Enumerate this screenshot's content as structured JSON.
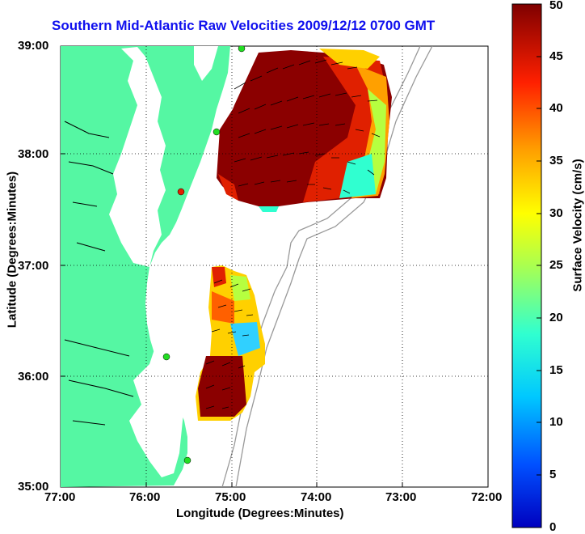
{
  "title": "Southern Mid-Atlantic Raw Velocities 2009/12/12 0700 GMT",
  "x_axis": {
    "label": "Longitude (Degrees:Minutes)",
    "ticks": [
      "77:00",
      "76:00",
      "75:00",
      "74:00",
      "73:00",
      "72:00"
    ]
  },
  "y_axis": {
    "label": "Latitude (Degrees:Minutes)",
    "ticks": [
      "39:00",
      "38:00",
      "37:00",
      "36:00",
      "35:00"
    ]
  },
  "colorbar": {
    "label": "Surface Velocity (cm/s)",
    "ticks": [
      "0",
      "5",
      "10",
      "15",
      "20",
      "25",
      "30",
      "35",
      "40",
      "45",
      "50"
    ],
    "range": [
      0,
      50
    ]
  },
  "colors": {
    "land": "#55f7a3",
    "coastline": "#000000",
    "bathymetry": "#999999",
    "title": "#1010ee"
  }
}
